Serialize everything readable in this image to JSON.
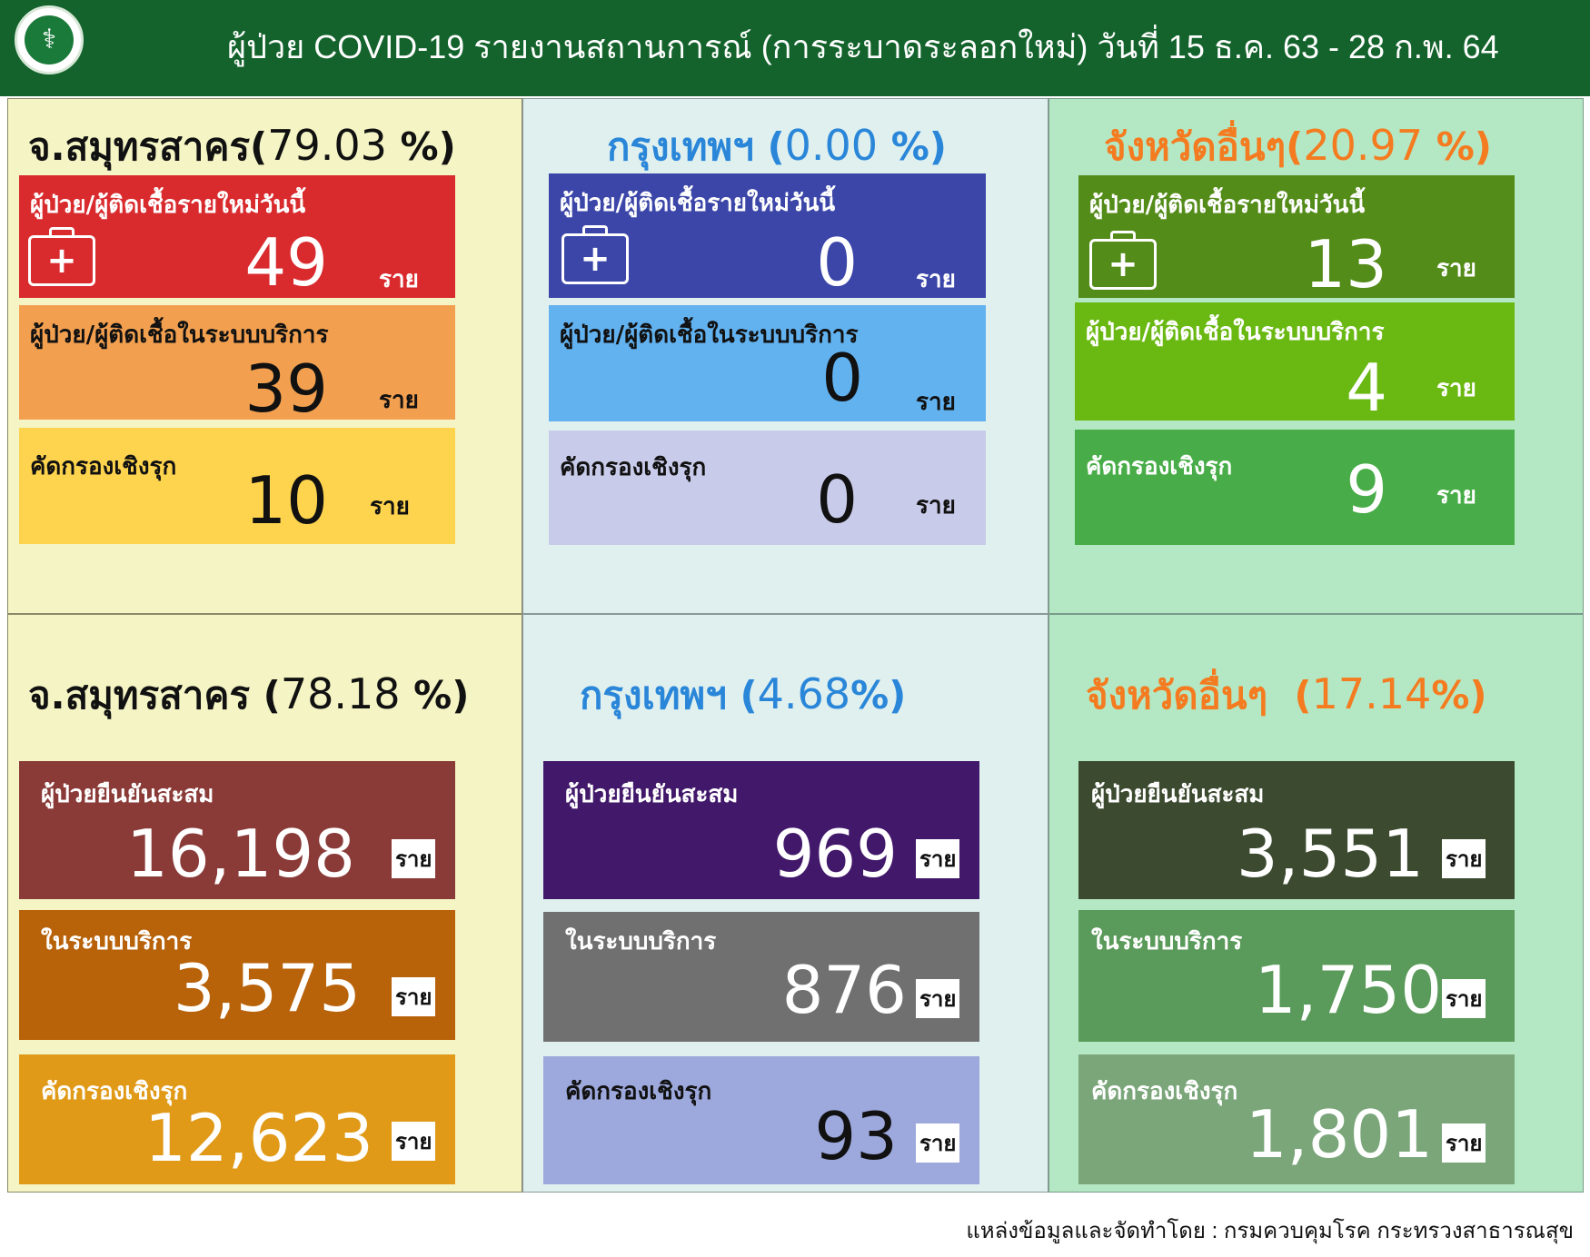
{
  "header": {
    "title": "ผู้ป่วย COVID-19 รายงานสถานการณ์ (การระบาดระลอกใหม่) วันที่ 15 ธ.ค. 63 - 28 ก.พ. 64"
  },
  "unit": "ราย",
  "top": {
    "samut": {
      "name": "จ.สมุทรสาคร",
      "pct": "79.03",
      "pct_sign": "%",
      "new_today": {
        "label": "ผู้ป่วย/ผู้ติดเชื้อรายใหม่วันนี้",
        "value": "49"
      },
      "in_service": {
        "label": "ผู้ป่วย/ผู้ติดเชื้อในระบบบริการ",
        "value": "39"
      },
      "screening": {
        "label": "คัดกรองเชิงรุก",
        "value": "10"
      }
    },
    "bangkok": {
      "name": "กรุงเทพฯ",
      "pct": "0.00",
      "pct_sign": "%",
      "new_today": {
        "label": "ผู้ป่วย/ผู้ติดเชื้อรายใหม่วันนี้",
        "value": "0"
      },
      "in_service": {
        "label": "ผู้ป่วย/ผู้ติดเชื้อในระบบบริการ",
        "value": "0"
      },
      "screening": {
        "label": "คัดกรองเชิงรุก",
        "value": "0"
      }
    },
    "other": {
      "name": "จังหวัดอื่นๆ",
      "pct": "20.97",
      "pct_sign": "%",
      "new_today": {
        "label": "ผู้ป่วย/ผู้ติดเชื้อรายใหม่วันนี้",
        "value": "13"
      },
      "in_service": {
        "label": "ผู้ป่วย/ผู้ติดเชื้อในระบบบริการ",
        "value": "4"
      },
      "screening": {
        "label": "คัดกรองเชิงรุก",
        "value": "9"
      }
    }
  },
  "bottom": {
    "samut": {
      "name": "จ.สมุทรสาคร",
      "pct": "78.18",
      "pct_sign": "%",
      "cumulative": {
        "label": "ผู้ป่วยยืนยันสะสม",
        "value": "16,198"
      },
      "in_service": {
        "label": "ในระบบบริการ",
        "value": "3,575"
      },
      "screening": {
        "label": "คัดกรองเชิงรุก",
        "value": "12,623"
      }
    },
    "bangkok": {
      "name": "กรุงเทพฯ",
      "pct": "4.68",
      "pct_sign": "%",
      "cumulative": {
        "label": "ผู้ป่วยยืนยันสะสม",
        "value": "969"
      },
      "in_service": {
        "label": "ในระบบบริการ",
        "value": "876"
      },
      "screening": {
        "label": "คัดกรองเชิงรุก",
        "value": "93"
      }
    },
    "other": {
      "name": "จังหวัดอื่นๆ",
      "pct": "17.14",
      "pct_sign": "%",
      "cumulative": {
        "label": "ผู้ป่วยยืนยันสะสม",
        "value": "3,551"
      },
      "in_service": {
        "label": "ในระบบบริการ",
        "value": "1,750"
      },
      "screening": {
        "label": "คัดกรองเชิงรุก",
        "value": "1,801"
      }
    }
  },
  "footer": {
    "source": "แหล่งข้อมูลและจัดทำโดย : กรมควบคุมโรค กระทรวงสาธารณสุข"
  },
  "colors": {
    "header_bg": "#14632c",
    "samut_title": "#111111",
    "bangkok_title": "#2a86d8",
    "other_title": "#f47b20",
    "samut_new": "#d92b2e",
    "samut_service": "#f2a050",
    "samut_screen": "#fed44e",
    "bkk_new": "#3b46a8",
    "bkk_service": "#62b2f0",
    "bkk_screen": "#c8cbe9",
    "other_new": "#548c1a",
    "other_service": "#6ab812",
    "other_screen": "#48ad48",
    "samut_cum": "#8a3b38",
    "samut_cum_service": "#b8620a",
    "samut_cum_screen": "#e09a18",
    "bkk_cum": "#42186a",
    "bkk_cum_service": "#707070",
    "bkk_cum_screen": "#9da8dc",
    "other_cum": "#3c4a30",
    "other_cum_service": "#5a9a5a",
    "other_cum_screen": "#7aa67a"
  },
  "icons": {
    "logo": "ministry-seal",
    "new_case": "medical-kit-icon"
  }
}
